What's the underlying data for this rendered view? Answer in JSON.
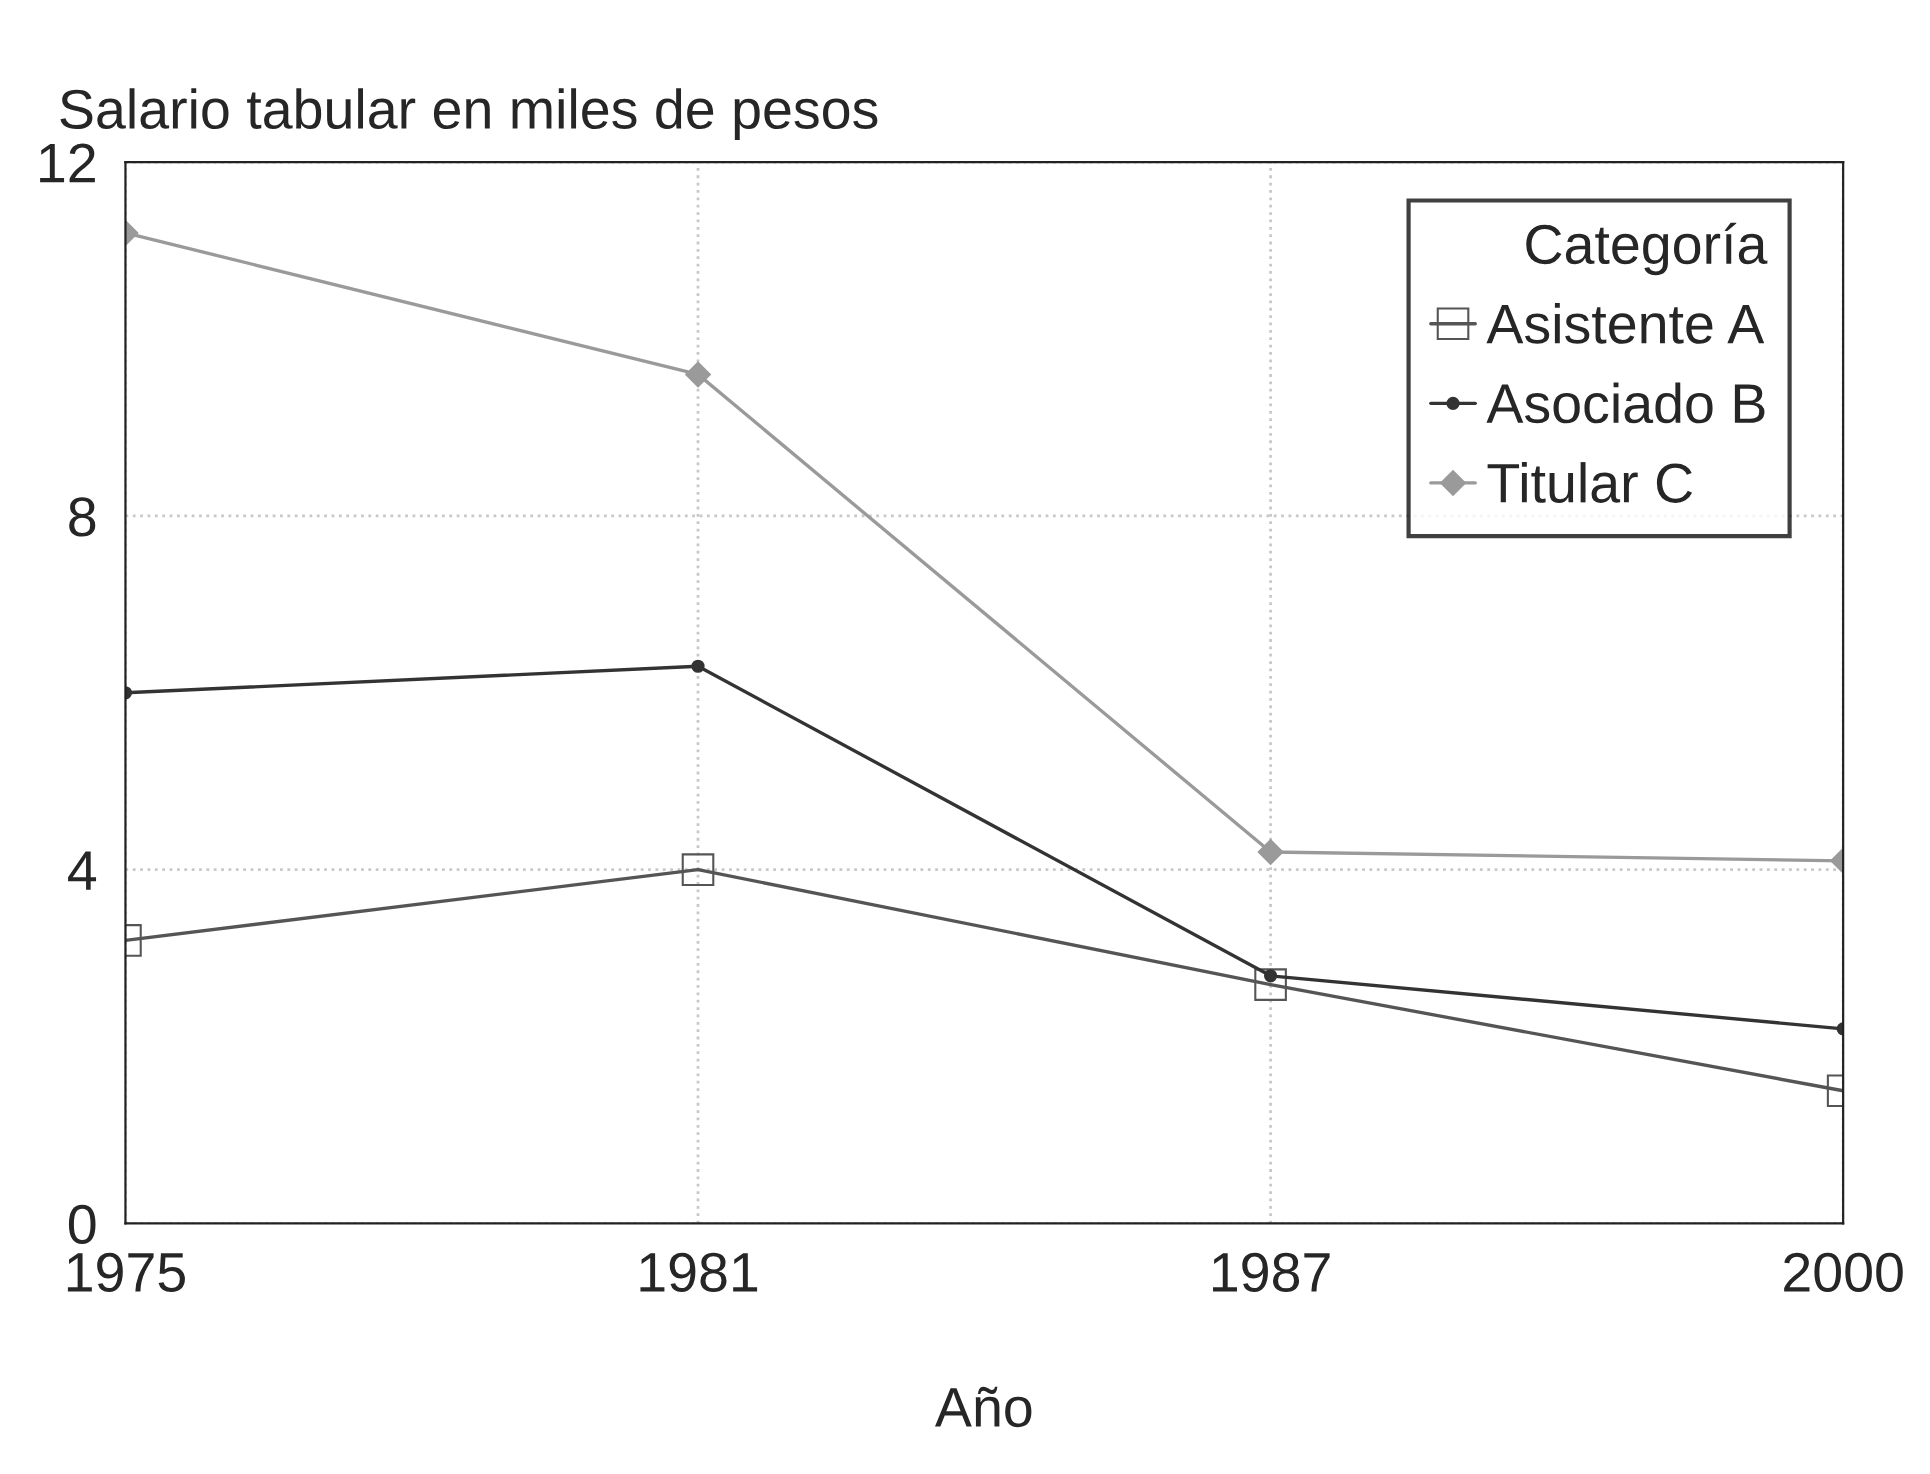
{
  "chart_data": {
    "type": "line",
    "ylabel": "Salario tabular en miles de pesos",
    "xlabel": "Año",
    "legend_title": "Categoría",
    "categories": [
      "1975",
      "1981",
      "1987",
      "2000"
    ],
    "series": [
      {
        "name": "Asistente A",
        "color": "#555555",
        "marker": "square",
        "values": [
          3.2,
          4.0,
          2.7,
          1.5
        ]
      },
      {
        "name": "Asociado B",
        "color": "#333333",
        "marker": "circle",
        "values": [
          6.0,
          6.3,
          2.8,
          2.2
        ]
      },
      {
        "name": "Titular C",
        "color": "#9a9a9a",
        "marker": "diamond",
        "values": [
          11.2,
          9.6,
          4.2,
          4.1
        ]
      }
    ],
    "ylim": [
      0,
      12
    ],
    "yticks": [
      0,
      4,
      8,
      12
    ],
    "grid": true,
    "legend": "top right",
    "line_style": "solid"
  }
}
